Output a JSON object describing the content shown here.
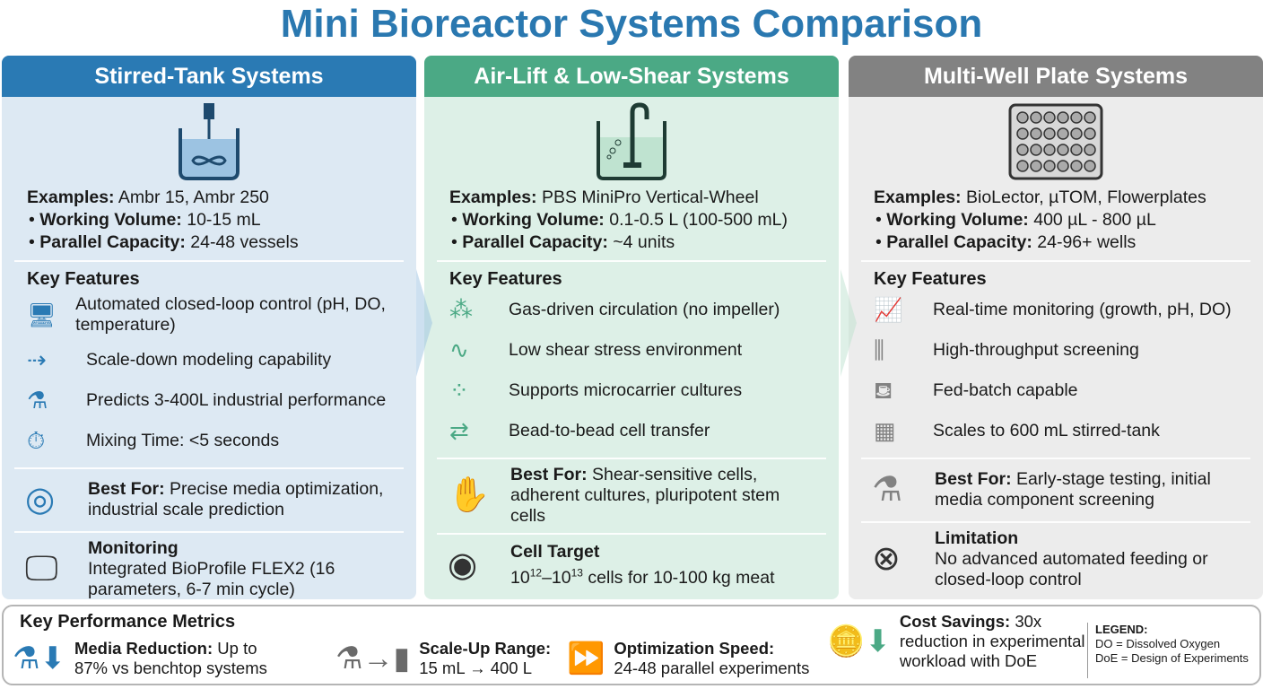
{
  "title": "Mini Bioreactor Systems Comparison",
  "columns": [
    {
      "id": "stirred",
      "header": "Stirred-Tank Systems",
      "header_color": "#2a7ab4",
      "bg": "#dde9f3",
      "icon": "stirred-tank-icon",
      "examples_label": "Examples:",
      "examples": "Ambr 15, Ambr 250",
      "volume_label": "Working Volume:",
      "volume": "10-15 mL",
      "capacity_label": "Parallel Capacity:",
      "capacity": "24-48 vessels",
      "key_features": "Key Features",
      "features": [
        {
          "icon": "control-panel-icon",
          "glyph": "🖥",
          "text": "Automated closed-loop control (pH, DO, temperature)"
        },
        {
          "icon": "scale-down-icon",
          "glyph": "⇢",
          "text": "Scale-down modeling capability"
        },
        {
          "icon": "flask-to-tank-icon",
          "glyph": "⚗",
          "text": "Predicts 3-400L industrial performance"
        },
        {
          "icon": "stopwatch-icon",
          "glyph": "⏱",
          "text": "Mixing Time: <5 seconds"
        }
      ],
      "best_label": "Best For:",
      "best": "Precise media optimization, industrial scale prediction",
      "best_icon": "target-icon",
      "best_glyph": "◎",
      "last_label": "Monitoring",
      "last": "Integrated BioProfile FLEX2 (16 parameters, 6-7 min cycle)",
      "last_icon": "monitor-icon",
      "last_glyph": "🖵"
    },
    {
      "id": "airlift",
      "header": "Air-Lift & Low-Shear Systems",
      "header_color": "#4ba985",
      "bg": "#ddf0e7",
      "icon": "airlift-vessel-icon",
      "examples_label": "Examples:",
      "examples": "PBS MiniPro Vertical-Wheel",
      "volume_label": "Working Volume:",
      "volume": "0.1-0.5 L (100-500 mL)",
      "capacity_label": "Parallel Capacity:",
      "capacity": "~4 units",
      "key_features": "Key Features",
      "features": [
        {
          "icon": "bubbles-icon",
          "glyph": "⁂",
          "text": "Gas-driven circulation (no impeller)"
        },
        {
          "icon": "cell-icon",
          "glyph": "∿",
          "text": "Low shear stress environment"
        },
        {
          "icon": "microcarriers-icon",
          "glyph": "⁘",
          "text": "Supports microcarrier cultures"
        },
        {
          "icon": "bead-transfer-icon",
          "glyph": "⇄",
          "text": "Bead-to-bead cell transfer"
        }
      ],
      "best_label": "Best For:",
      "best": "Shear-sensitive cells, adherent cultures, pluripotent stem cells",
      "best_icon": "hand-cell-icon",
      "best_glyph": "✋",
      "last_label": "Cell Target",
      "last_parts": [
        "10",
        "12",
        "–10",
        "13",
        " cells for 10-100 kg meat"
      ],
      "last_icon": "petri-dish-icon",
      "last_glyph": "◉"
    },
    {
      "id": "multiwell",
      "header": "Multi-Well Plate Systems",
      "header_color": "#828282",
      "bg": "#ececec",
      "icon": "well-plate-icon",
      "examples_label": "Examples:",
      "examples": "BioLector, µTOM, Flowerplates",
      "volume_label": "Working Volume:",
      "volume": "400 µL - 800 µL",
      "capacity_label": "Parallel Capacity:",
      "capacity": "24-96+ wells",
      "key_features": "Key Features",
      "features": [
        {
          "icon": "chart-icon",
          "glyph": "📈",
          "text": "Real-time monitoring (growth, pH, DO)"
        },
        {
          "icon": "test-tubes-icon",
          "glyph": "⫼",
          "text": "High-throughput screening"
        },
        {
          "icon": "pouring-icon",
          "glyph": "⛾",
          "text": "Fed-batch capable"
        },
        {
          "icon": "plate-to-tank-icon",
          "glyph": "▦",
          "text": "Scales to 600 mL stirred-tank"
        }
      ],
      "best_label": "Best For:",
      "best": "Early-stage testing, initial media component screening",
      "best_icon": "flask-check-icon",
      "best_glyph": "⚗",
      "last_label": "Limitation",
      "last": "No advanced automated feeding or closed-loop control",
      "last_icon": "x-circle-icon",
      "last_glyph": "⊗"
    }
  ],
  "metrics": {
    "title": "Key Performance Metrics",
    "items": [
      {
        "icon": "flask-down-arrow-icon",
        "glyph": "⚗⬇",
        "label": "Media Reduction:",
        "text": " Up to",
        "text2": "87% vs benchtop systems"
      },
      {
        "icon": "flask-to-tank-icon",
        "glyph": "⚗→▮",
        "label": "Scale-Up Range:",
        "text": "",
        "text2": "15 mL → 400 L"
      },
      {
        "icon": "fast-forward-icon",
        "glyph": "⏩",
        "label": "Optimization Speed:",
        "text": "",
        "text2": "24-48 parallel experiments"
      },
      {
        "icon": "coins-down-icon",
        "glyph": "🪙⬇",
        "label": "Cost Savings:",
        "text": " 30x",
        "text2": "reduction in experimental",
        "text3": "workload with DoE"
      }
    ],
    "legend": {
      "title": "LEGEND:",
      "items": [
        "DO = Dissolved Oxygen",
        "DoE = Design of Experiments"
      ]
    }
  }
}
